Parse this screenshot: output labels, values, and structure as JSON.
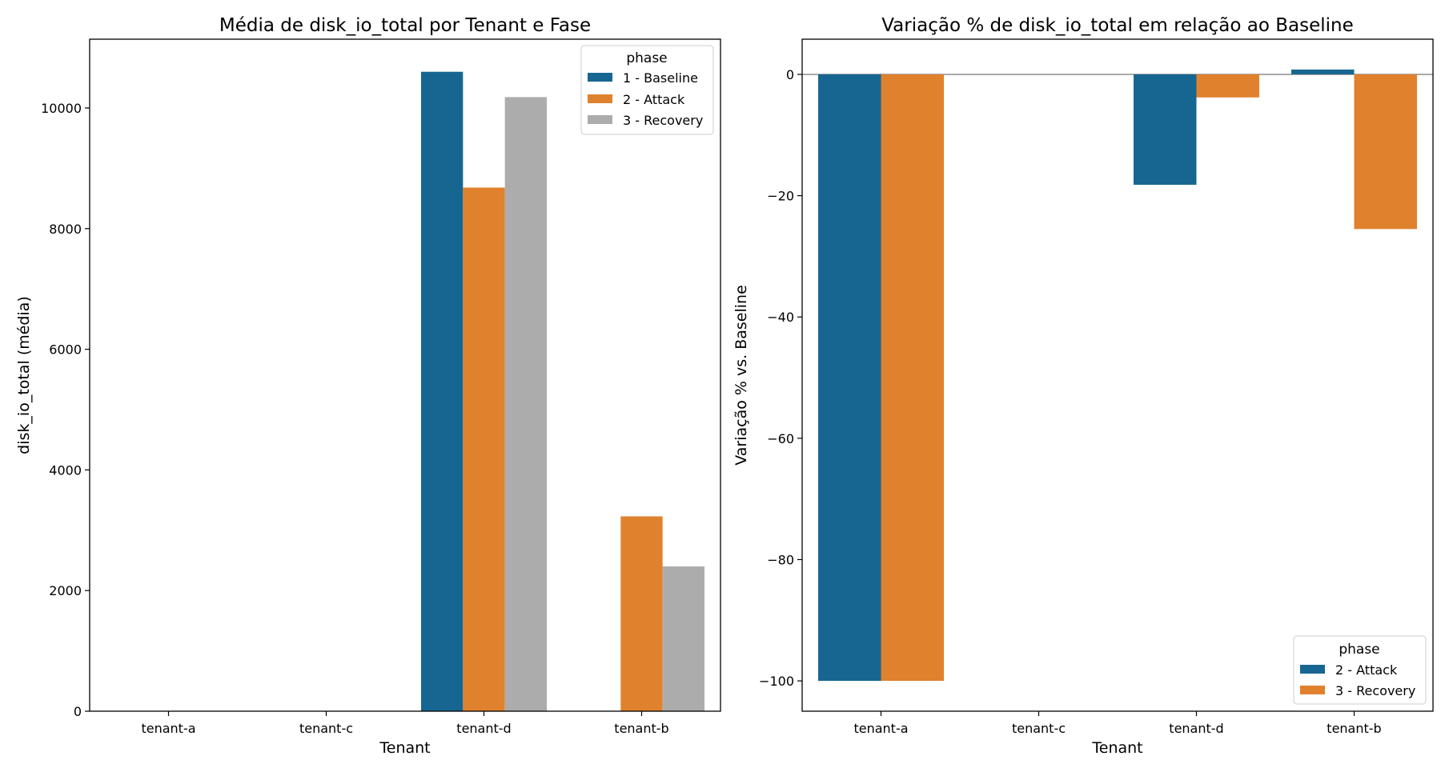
{
  "chart_data": [
    {
      "type": "bar",
      "title": "Média de disk_io_total por Tenant e Fase",
      "xlabel": "Tenant",
      "ylabel": "disk_io_total (média)",
      "categories": [
        "tenant-a",
        "tenant-c",
        "tenant-d",
        "tenant-b"
      ],
      "ylim": [
        0,
        11140
      ],
      "yticks": [
        0,
        2000,
        4000,
        6000,
        8000,
        10000
      ],
      "ytick_labels": [
        "0",
        "2000",
        "4000",
        "6000",
        "8000",
        "10000"
      ],
      "grid": false,
      "legend": {
        "title": "phase",
        "placement": "top-right"
      },
      "series": [
        {
          "name": "1 - Baseline",
          "color": "#176692",
          "values": [
            0,
            0,
            10600,
            0
          ]
        },
        {
          "name": "2 - Attack",
          "color": "#e0812d",
          "values": [
            0,
            0,
            8680,
            3230
          ]
        },
        {
          "name": "3 - Recovery",
          "color": "#acacac",
          "values": [
            0,
            0,
            10180,
            2400
          ]
        }
      ]
    },
    {
      "type": "bar",
      "title": "Variação % de disk_io_total em relação ao Baseline",
      "xlabel": "Tenant",
      "ylabel": "Variação % vs. Baseline",
      "categories": [
        "tenant-a",
        "tenant-c",
        "tenant-d",
        "tenant-b"
      ],
      "ylim": [
        -105,
        5.8
      ],
      "yticks": [
        -100,
        -80,
        -60,
        -40,
        -20,
        0
      ],
      "ytick_labels": [
        "−100",
        "−80",
        "−60",
        "−40",
        "−20",
        "0"
      ],
      "zero_line": true,
      "grid": false,
      "legend": {
        "title": "phase",
        "placement": "lower-right"
      },
      "series": [
        {
          "name": "2 - Attack",
          "color": "#176692",
          "values": [
            -100,
            0,
            -18.2,
            0.8
          ]
        },
        {
          "name": "3 - Recovery",
          "color": "#e0812d",
          "values": [
            -100,
            0,
            -3.8,
            -25.5
          ]
        }
      ]
    }
  ]
}
